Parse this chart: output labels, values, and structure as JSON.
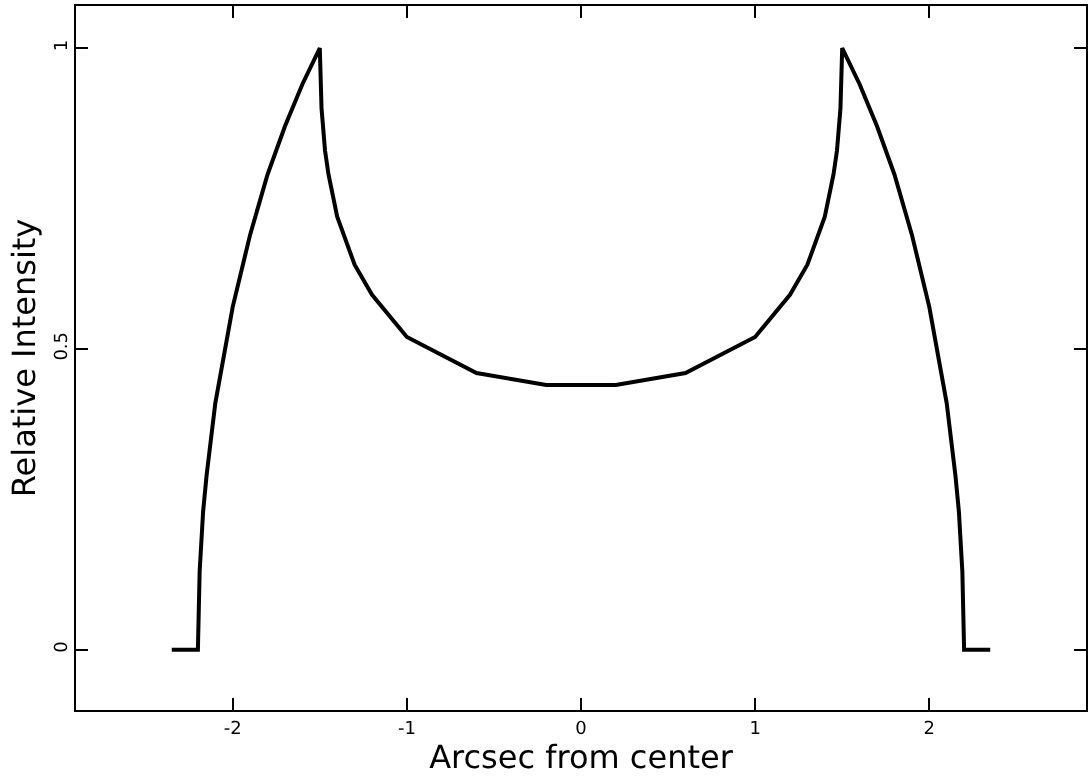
{
  "chart_data": {
    "type": "line",
    "xlabel": "Arcsec from center",
    "ylabel": "Relative Intensity",
    "series": [
      {
        "color": "#000000",
        "x": [
          -2.35,
          -2.2,
          -2.19,
          -2.17,
          -2.15,
          -2.1,
          -2.0,
          -1.9,
          -1.8,
          -1.7,
          -1.6,
          -1.5,
          -1.49,
          -1.47,
          -1.45,
          -1.4,
          -1.3,
          -1.2,
          -1.0,
          -0.8,
          -0.6,
          -0.4,
          -0.2,
          0,
          0.2,
          0.4,
          0.6,
          0.8,
          1.0,
          1.2,
          1.3,
          1.4,
          1.45,
          1.47,
          1.49,
          1.5,
          1.6,
          1.7,
          1.8,
          1.9,
          2.0,
          2.1,
          2.15,
          2.17,
          2.19,
          2.2,
          2.35
        ],
        "values": [
          0,
          0,
          0.13,
          0.23,
          0.29,
          0.41,
          0.57,
          0.69,
          0.79,
          0.87,
          0.94,
          1.0,
          0.9,
          0.83,
          0.79,
          0.72,
          0.64,
          0.59,
          0.52,
          0.49,
          0.46,
          0.45,
          0.44,
          0.44,
          0.44,
          0.45,
          0.46,
          0.49,
          0.52,
          0.59,
          0.64,
          0.72,
          0.79,
          0.83,
          0.9,
          1.0,
          0.94,
          0.87,
          0.79,
          0.69,
          0.57,
          0.41,
          0.29,
          0.23,
          0.13,
          0,
          0
        ]
      }
    ],
    "xlim": [
      -2.9,
      2.9
    ],
    "xticks": [
      -2,
      -1,
      0,
      1,
      2
    ],
    "ylim": [
      -0.1,
      1.07
    ],
    "yticks": [
      0,
      0.5,
      1
    ],
    "grid": false,
    "marker": "none",
    "line_style": "solid"
  }
}
